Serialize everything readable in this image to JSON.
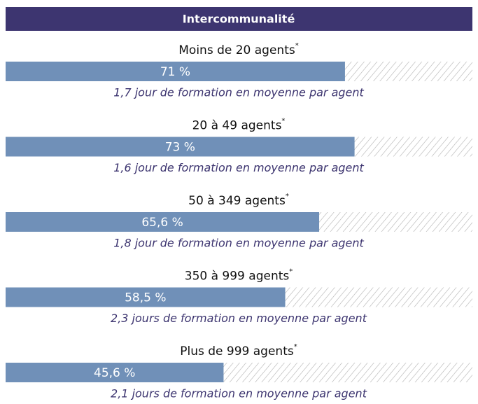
{
  "chart_data": {
    "type": "bar",
    "title": "Intercommunalité",
    "categories": [
      "Moins de 20 agents",
      "20 à 49 agents",
      "50 à 349 agents",
      "350 à 999 agents",
      "Plus de 999 agents"
    ],
    "category_mark": "*",
    "values": [
      71,
      73,
      65.6,
      58.5,
      45.6
    ],
    "value_labels": [
      "71 %",
      "73 %",
      "65,6 %",
      "58,5 %",
      "45,6 %"
    ],
    "notes": [
      "1,7 jour de formation en moyenne par agent",
      "1,6 jour de formation en moyenne par agent",
      "1,8 jour de formation en moyenne par agent",
      "2,3 jours de formation en moyenne par agent",
      "2,1 jours de formation en moyenne par agent"
    ],
    "color": "#7090b8"
  }
}
